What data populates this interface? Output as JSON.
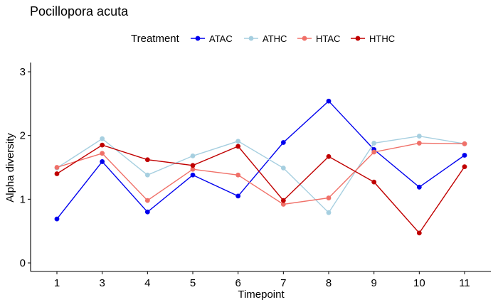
{
  "chart_data": {
    "type": "line",
    "title": "Pocillopora acuta",
    "xlabel": "Timepoint",
    "ylabel": "Alpha diversity",
    "categories": [
      "1",
      "3",
      "4",
      "5",
      "6",
      "7",
      "8",
      "9",
      "10",
      "11"
    ],
    "ylim": [
      0,
      3
    ],
    "yticks": [
      "0",
      "1",
      "2",
      "3"
    ],
    "grid": false,
    "legend": {
      "title": "Treatment",
      "placement": "top"
    },
    "series": [
      {
        "name": "ATAC",
        "color": "#0000ee",
        "values": [
          0.69,
          1.59,
          0.8,
          1.38,
          1.05,
          1.89,
          2.54,
          1.78,
          1.19,
          1.69
        ]
      },
      {
        "name": "ATHC",
        "color": "#a6cfe0",
        "values": [
          1.49,
          1.95,
          1.38,
          1.68,
          1.91,
          1.49,
          0.79,
          1.88,
          1.99,
          1.87
        ]
      },
      {
        "name": "HTAC",
        "color": "#f07068",
        "values": [
          1.5,
          1.72,
          0.98,
          1.47,
          1.38,
          0.92,
          1.02,
          1.74,
          1.88,
          1.87
        ]
      },
      {
        "name": "HTHC",
        "color": "#c00000",
        "values": [
          1.4,
          1.85,
          1.62,
          1.53,
          1.83,
          0.98,
          1.67,
          1.27,
          0.47,
          1.51
        ]
      }
    ]
  }
}
